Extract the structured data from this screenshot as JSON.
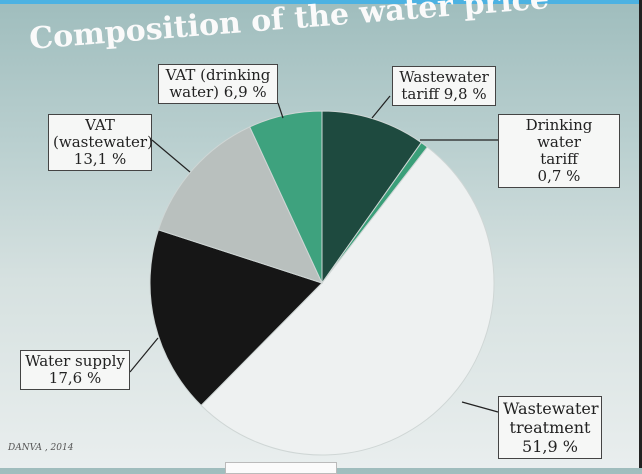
{
  "chart_data": {
    "type": "pie",
    "title": "Composition of the water price",
    "start": "top",
    "direction": "clockwise",
    "slices": [
      {
        "label": "Wastewater tariff",
        "value": 9.8,
        "display": "9,8 %",
        "color": "#1e4a3f"
      },
      {
        "label": "Drinking water tariff",
        "value": 0.7,
        "display": "0,7 %",
        "color": "#3a9f79"
      },
      {
        "label": "Wastewater treatment",
        "value": 51.9,
        "display": "51,9 %",
        "color": "#eef1f1"
      },
      {
        "label": "Water supply",
        "value": 17.6,
        "display": "17,6 %",
        "color": "#161616"
      },
      {
        "label": "VAT (wastewater)",
        "value": 13.1,
        "display": "13,1 %",
        "color": "#b9c0be"
      },
      {
        "label": "VAT (drinking water)",
        "value": 6.9,
        "display": "6,9 %",
        "color": "#3ea27e"
      }
    ],
    "labels": {
      "vat_drinking": [
        "VAT (drinking",
        "water) 6,9 %"
      ],
      "wastewater_tariff": [
        "Wastewater",
        "tariff 9,8 %"
      ],
      "drinking_tariff": [
        "Drinking water",
        "tariff",
        "0,7 %"
      ],
      "vat_wastewater": [
        "VAT",
        "(wastewater)",
        "13,1 %"
      ],
      "water_supply": [
        "Water supply",
        "17,6 %"
      ],
      "wastewater_treatment": [
        "Wastewater",
        "treatment",
        "51,9 %"
      ]
    },
    "source": "DANVA , 2014"
  }
}
